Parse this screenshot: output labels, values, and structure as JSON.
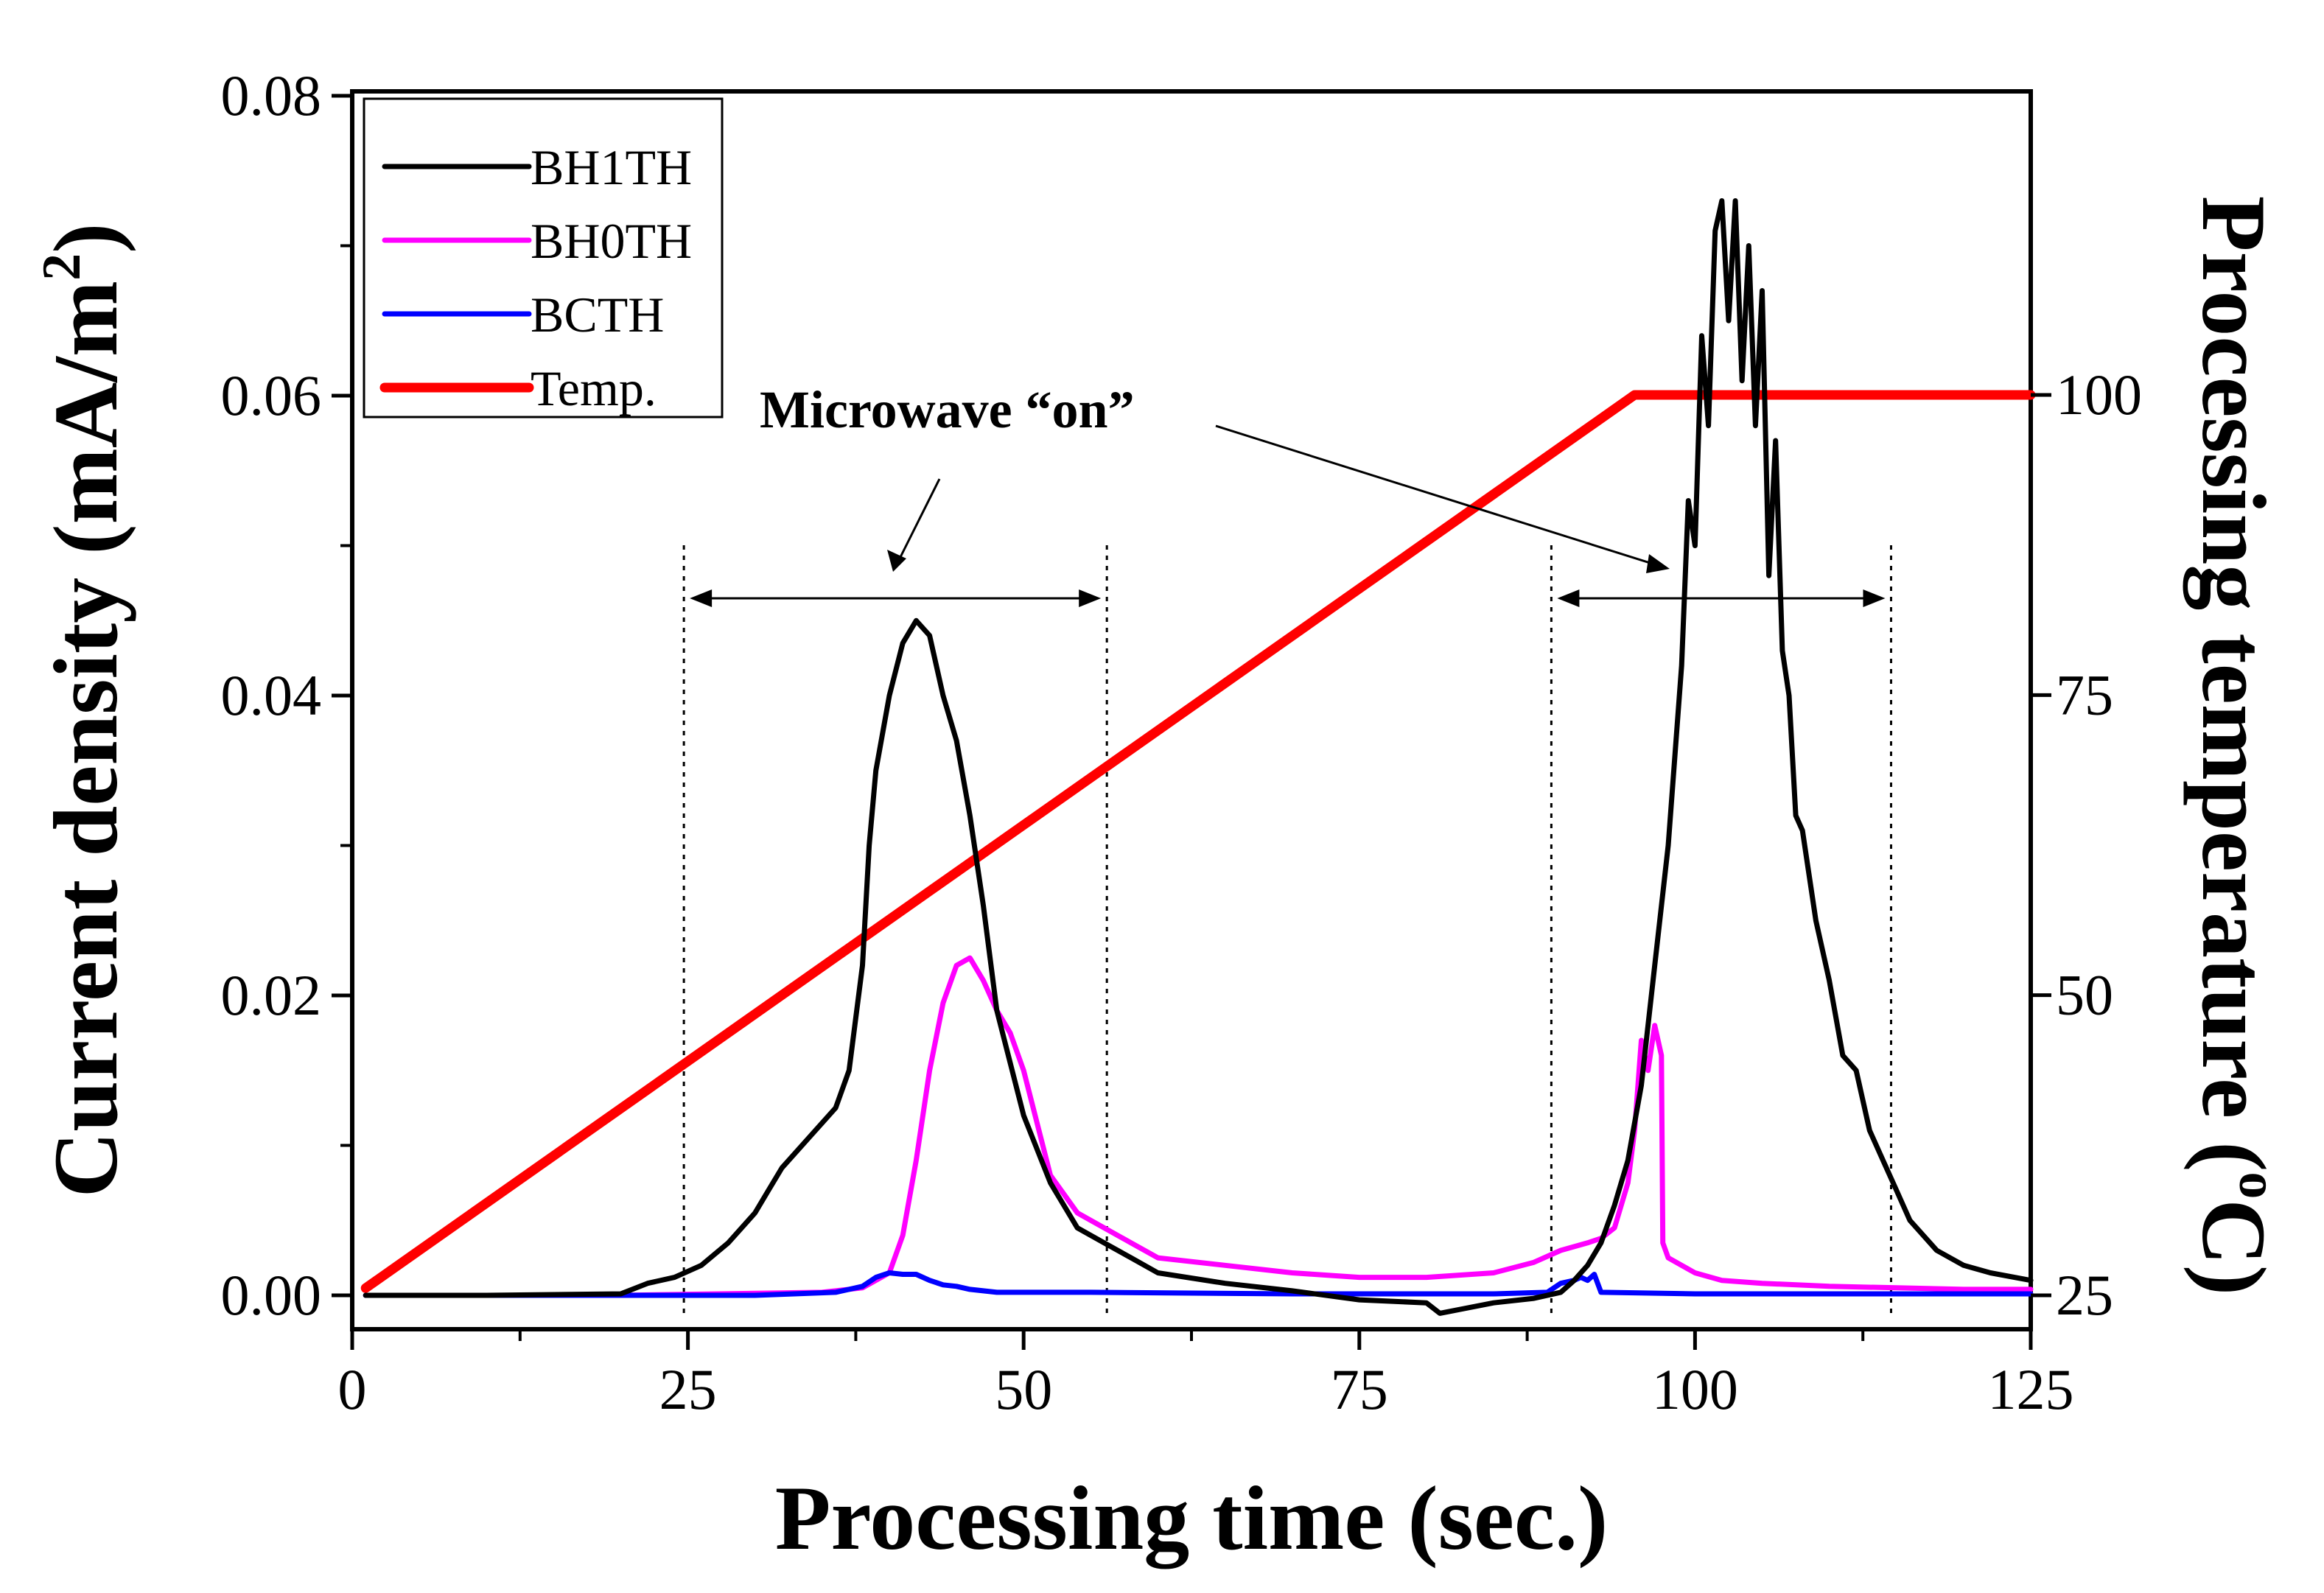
{
  "chart_data": {
    "type": "line",
    "xlabel": "Processing time (sec.)",
    "ylabel_left": "Current density (mA/m",
    "ylabel_left_sup": "2",
    "ylabel_left_tail": ")",
    "ylabel_right": "Processing temperature (",
    "ylabel_right_sup": "o",
    "ylabel_right_tail": "C)",
    "xlim": [
      0,
      125
    ],
    "ylim_left": [
      -0.002,
      0.08
    ],
    "ylim_right": [
      25,
      125
    ],
    "x_ticks": [
      0,
      25,
      50,
      75,
      100,
      125
    ],
    "x_tick_labels": [
      "0",
      "25",
      "50",
      "75",
      "100",
      "125"
    ],
    "y_left_ticks": [
      0.0,
      0.02,
      0.04,
      0.06,
      0.08
    ],
    "y_left_tick_labels": [
      "0.00",
      "0.02",
      "0.04",
      "0.06",
      "0.08"
    ],
    "y_right_ticks": [
      25,
      50,
      75,
      100
    ],
    "y_right_tick_labels": [
      "25",
      "50",
      "75",
      "100"
    ],
    "annotation": {
      "text": "Microwave “on”",
      "intervals": [
        [
          24.7,
          56.2
        ],
        [
          89.3,
          114.6
        ]
      ]
    },
    "legend": {
      "placement": "top-left",
      "entries": [
        "BH1TH",
        "BH0TH",
        "BCTH",
        "Temp."
      ]
    },
    "series": [
      {
        "name": "BH1TH",
        "color": "#000000",
        "axis": "left",
        "x": [
          1,
          10,
          20,
          22,
          24,
          26,
          28,
          30,
          31,
          32,
          34,
          36,
          37,
          38,
          38.5,
          39,
          40,
          41,
          42,
          43,
          44,
          45,
          46,
          47,
          48,
          50,
          52,
          54,
          56,
          58,
          60,
          65,
          70,
          75,
          80,
          81,
          85,
          88,
          90,
          91,
          92,
          93,
          94,
          95,
          96,
          97,
          98,
          99,
          99.5,
          100,
          100.5,
          101,
          101.5,
          102,
          102.5,
          103,
          103.5,
          104,
          104.5,
          105,
          105.5,
          106,
          106.5,
          107,
          107.5,
          108,
          109,
          110,
          111,
          112,
          113,
          114,
          115,
          116,
          118,
          120,
          122,
          125
        ],
        "y": [
          0.0,
          0.0,
          0.0001,
          0.0008,
          0.0012,
          0.002,
          0.0035,
          0.0055,
          0.007,
          0.0085,
          0.0105,
          0.0125,
          0.015,
          0.022,
          0.03,
          0.035,
          0.04,
          0.0435,
          0.045,
          0.044,
          0.04,
          0.037,
          0.032,
          0.026,
          0.019,
          0.012,
          0.0075,
          0.0045,
          0.0035,
          0.0025,
          0.0015,
          0.0008,
          0.0003,
          -0.0003,
          -0.0005,
          -0.0012,
          -0.0005,
          -0.0002,
          0.0002,
          0.001,
          0.002,
          0.0035,
          0.006,
          0.009,
          0.014,
          0.022,
          0.03,
          0.042,
          0.053,
          0.05,
          0.064,
          0.058,
          0.071,
          0.073,
          0.065,
          0.073,
          0.061,
          0.07,
          0.058,
          0.067,
          0.048,
          0.057,
          0.043,
          0.04,
          0.032,
          0.031,
          0.025,
          0.021,
          0.016,
          0.015,
          0.011,
          0.009,
          0.007,
          0.005,
          0.003,
          0.002,
          0.0015,
          0.001
        ]
      },
      {
        "name": "BH0TH",
        "color": "#ff00ff",
        "axis": "left",
        "x": [
          1,
          20,
          35,
          38,
          40,
          41,
          42,
          43,
          44,
          45,
          46,
          47,
          48,
          49,
          50,
          52,
          54,
          56,
          58,
          60,
          65,
          70,
          75,
          80,
          85,
          88,
          90,
          92,
          93,
          94,
          95,
          95.5,
          96,
          96.5,
          97,
          97.5,
          97.6,
          98,
          99,
          100,
          102,
          105,
          110,
          115,
          120,
          125
        ],
        "y": [
          0.0,
          0.0,
          0.0002,
          0.0005,
          0.0015,
          0.004,
          0.009,
          0.015,
          0.0195,
          0.022,
          0.0225,
          0.021,
          0.019,
          0.0175,
          0.015,
          0.008,
          0.0055,
          0.0045,
          0.0035,
          0.0025,
          0.002,
          0.0015,
          0.0012,
          0.0012,
          0.0015,
          0.0022,
          0.003,
          0.0035,
          0.0038,
          0.0045,
          0.0075,
          0.011,
          0.017,
          0.015,
          0.018,
          0.016,
          0.0035,
          0.0025,
          0.002,
          0.0015,
          0.001,
          0.0008,
          0.0006,
          0.0005,
          0.0004,
          0.0004
        ]
      },
      {
        "name": "BCTH",
        "color": "#0000ff",
        "axis": "left",
        "x": [
          1,
          30,
          36,
          38,
          39,
          40,
          41,
          42,
          43,
          44,
          45,
          46,
          48,
          55,
          70,
          85,
          89,
          90,
          91,
          91.5,
          92,
          92.5,
          93,
          100,
          125
        ],
        "y": [
          0.0,
          0.0,
          0.0002,
          0.0006,
          0.0012,
          0.0015,
          0.0014,
          0.0014,
          0.001,
          0.0007,
          0.0006,
          0.0004,
          0.0002,
          0.0002,
          0.0001,
          0.0001,
          0.0002,
          0.0008,
          0.001,
          0.0012,
          0.001,
          0.0014,
          0.0002,
          0.0001,
          0.0001
        ]
      },
      {
        "name": "Temp.",
        "color": "#ff0000",
        "axis": "right",
        "x": [
          1,
          95.5,
          125
        ],
        "y": [
          25.6,
          100,
          100
        ]
      }
    ]
  }
}
